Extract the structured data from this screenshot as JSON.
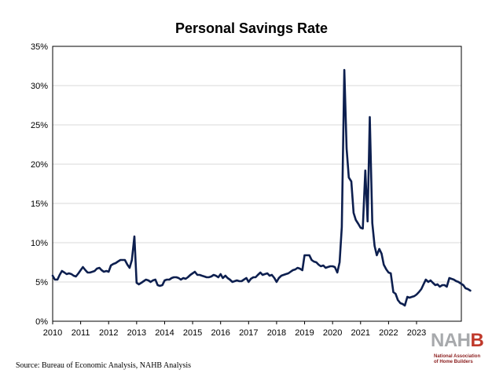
{
  "chart_data": {
    "type": "line",
    "title": "Personal Savings Rate",
    "xlabel": "",
    "ylabel": "",
    "xlim": [
      2010,
      2024.6
    ],
    "ylim": [
      0,
      35
    ],
    "y_ticks": [
      0,
      5,
      10,
      15,
      20,
      25,
      30,
      35
    ],
    "y_tick_labels": [
      "0%",
      "5%",
      "10%",
      "15%",
      "20%",
      "25%",
      "30%",
      "35%"
    ],
    "x_ticks": [
      2010,
      2011,
      2012,
      2013,
      2014,
      2015,
      2016,
      2017,
      2018,
      2019,
      2020,
      2021,
      2022,
      2023
    ],
    "x_tick_labels": [
      "2010",
      "2011",
      "2012",
      "2013",
      "2014",
      "2015",
      "2016",
      "2017",
      "2018",
      "2019",
      "2020",
      "2021",
      "2022",
      "2023"
    ],
    "grid": true,
    "line_color": "#0d1f4f",
    "series": [
      {
        "values": [
          [
            2010.0,
            5.8
          ],
          [
            2010.08,
            5.3
          ],
          [
            2010.17,
            5.3
          ],
          [
            2010.25,
            5.9
          ],
          [
            2010.33,
            6.4
          ],
          [
            2010.42,
            6.2
          ],
          [
            2010.5,
            6.0
          ],
          [
            2010.58,
            6.1
          ],
          [
            2010.67,
            6.0
          ],
          [
            2010.75,
            5.8
          ],
          [
            2010.83,
            5.7
          ],
          [
            2010.92,
            6.1
          ],
          [
            2011.0,
            6.5
          ],
          [
            2011.08,
            6.9
          ],
          [
            2011.17,
            6.5
          ],
          [
            2011.25,
            6.2
          ],
          [
            2011.33,
            6.2
          ],
          [
            2011.42,
            6.3
          ],
          [
            2011.5,
            6.4
          ],
          [
            2011.58,
            6.7
          ],
          [
            2011.67,
            6.8
          ],
          [
            2011.75,
            6.5
          ],
          [
            2011.83,
            6.3
          ],
          [
            2011.92,
            6.4
          ],
          [
            2012.0,
            6.3
          ],
          [
            2012.08,
            7.1
          ],
          [
            2012.17,
            7.3
          ],
          [
            2012.25,
            7.4
          ],
          [
            2012.33,
            7.6
          ],
          [
            2012.42,
            7.8
          ],
          [
            2012.5,
            7.8
          ],
          [
            2012.58,
            7.8
          ],
          [
            2012.67,
            7.2
          ],
          [
            2012.75,
            6.8
          ],
          [
            2012.83,
            7.8
          ],
          [
            2012.92,
            10.8
          ],
          [
            2013.0,
            4.9
          ],
          [
            2013.08,
            4.7
          ],
          [
            2013.17,
            4.9
          ],
          [
            2013.25,
            5.1
          ],
          [
            2013.33,
            5.3
          ],
          [
            2013.42,
            5.2
          ],
          [
            2013.5,
            5.0
          ],
          [
            2013.58,
            5.2
          ],
          [
            2013.67,
            5.3
          ],
          [
            2013.75,
            4.6
          ],
          [
            2013.83,
            4.5
          ],
          [
            2013.92,
            4.6
          ],
          [
            2014.0,
            5.2
          ],
          [
            2014.08,
            5.3
          ],
          [
            2014.17,
            5.3
          ],
          [
            2014.25,
            5.5
          ],
          [
            2014.33,
            5.6
          ],
          [
            2014.42,
            5.6
          ],
          [
            2014.5,
            5.5
          ],
          [
            2014.58,
            5.3
          ],
          [
            2014.67,
            5.5
          ],
          [
            2014.75,
            5.4
          ],
          [
            2014.83,
            5.6
          ],
          [
            2014.92,
            5.9
          ],
          [
            2015.0,
            6.1
          ],
          [
            2015.08,
            6.3
          ],
          [
            2015.17,
            5.9
          ],
          [
            2015.25,
            5.9
          ],
          [
            2015.33,
            5.8
          ],
          [
            2015.42,
            5.7
          ],
          [
            2015.5,
            5.6
          ],
          [
            2015.58,
            5.6
          ],
          [
            2015.67,
            5.7
          ],
          [
            2015.75,
            5.9
          ],
          [
            2015.83,
            5.8
          ],
          [
            2015.92,
            5.6
          ],
          [
            2016.0,
            6.0
          ],
          [
            2016.08,
            5.5
          ],
          [
            2016.17,
            5.8
          ],
          [
            2016.25,
            5.5
          ],
          [
            2016.33,
            5.3
          ],
          [
            2016.42,
            5.0
          ],
          [
            2016.5,
            5.1
          ],
          [
            2016.58,
            5.2
          ],
          [
            2016.67,
            5.1
          ],
          [
            2016.75,
            5.1
          ],
          [
            2016.83,
            5.3
          ],
          [
            2016.92,
            5.5
          ],
          [
            2017.0,
            5.0
          ],
          [
            2017.08,
            5.4
          ],
          [
            2017.17,
            5.6
          ],
          [
            2017.25,
            5.6
          ],
          [
            2017.33,
            5.9
          ],
          [
            2017.42,
            6.2
          ],
          [
            2017.5,
            5.9
          ],
          [
            2017.58,
            6.0
          ],
          [
            2017.67,
            6.1
          ],
          [
            2017.75,
            5.8
          ],
          [
            2017.83,
            5.9
          ],
          [
            2017.92,
            5.5
          ],
          [
            2018.0,
            5.0
          ],
          [
            2018.08,
            5.5
          ],
          [
            2018.17,
            5.8
          ],
          [
            2018.25,
            5.9
          ],
          [
            2018.33,
            6.0
          ],
          [
            2018.42,
            6.1
          ],
          [
            2018.5,
            6.3
          ],
          [
            2018.58,
            6.5
          ],
          [
            2018.67,
            6.6
          ],
          [
            2018.75,
            6.8
          ],
          [
            2018.83,
            6.7
          ],
          [
            2018.92,
            6.5
          ],
          [
            2019.0,
            8.4
          ],
          [
            2019.08,
            8.4
          ],
          [
            2019.17,
            8.4
          ],
          [
            2019.25,
            7.8
          ],
          [
            2019.33,
            7.6
          ],
          [
            2019.42,
            7.5
          ],
          [
            2019.5,
            7.2
          ],
          [
            2019.58,
            7.0
          ],
          [
            2019.67,
            7.1
          ],
          [
            2019.75,
            6.8
          ],
          [
            2019.83,
            6.9
          ],
          [
            2019.92,
            7.0
          ],
          [
            2020.0,
            7.0
          ],
          [
            2020.08,
            6.9
          ],
          [
            2020.17,
            6.2
          ],
          [
            2020.25,
            7.5
          ],
          [
            2020.33,
            12.0
          ],
          [
            2020.42,
            32.0
          ],
          [
            2020.5,
            22.0
          ],
          [
            2020.58,
            18.3
          ],
          [
            2020.67,
            17.8
          ],
          [
            2020.75,
            13.8
          ],
          [
            2020.83,
            12.9
          ],
          [
            2020.92,
            12.4
          ],
          [
            2021.0,
            11.9
          ],
          [
            2021.08,
            11.8
          ],
          [
            2021.17,
            19.2
          ],
          [
            2021.25,
            12.7
          ],
          [
            2021.33,
            26.0
          ],
          [
            2021.42,
            12.5
          ],
          [
            2021.5,
            9.6
          ],
          [
            2021.58,
            8.4
          ],
          [
            2021.67,
            9.2
          ],
          [
            2021.75,
            8.6
          ],
          [
            2021.83,
            7.2
          ],
          [
            2021.92,
            6.6
          ],
          [
            2022.0,
            6.2
          ],
          [
            2022.08,
            6.1
          ],
          [
            2022.17,
            3.7
          ],
          [
            2022.25,
            3.5
          ],
          [
            2022.33,
            2.7
          ],
          [
            2022.42,
            2.3
          ],
          [
            2022.5,
            2.2
          ],
          [
            2022.58,
            2.0
          ],
          [
            2022.67,
            3.1
          ],
          [
            2022.75,
            3.0
          ],
          [
            2022.83,
            3.1
          ],
          [
            2022.92,
            3.2
          ],
          [
            2023.0,
            3.4
          ],
          [
            2023.08,
            3.7
          ],
          [
            2023.17,
            4.1
          ],
          [
            2023.25,
            4.7
          ],
          [
            2023.33,
            5.3
          ],
          [
            2023.42,
            5.0
          ],
          [
            2023.5,
            5.2
          ],
          [
            2023.58,
            4.9
          ],
          [
            2023.67,
            4.6
          ],
          [
            2023.75,
            4.7
          ],
          [
            2023.83,
            4.4
          ],
          [
            2023.92,
            4.6
          ],
          [
            2024.0,
            4.6
          ],
          [
            2024.08,
            4.4
          ],
          [
            2024.17,
            5.5
          ],
          [
            2024.25,
            5.4
          ],
          [
            2024.33,
            5.3
          ],
          [
            2024.42,
            5.1
          ],
          [
            2024.5,
            5.0
          ],
          [
            2024.58,
            4.8
          ],
          [
            2024.67,
            4.6
          ],
          [
            2024.75,
            4.2
          ],
          [
            2024.83,
            4.1
          ],
          [
            2024.92,
            3.9
          ]
        ]
      }
    ]
  },
  "footer": {
    "source": "Source: Bureau of Economic Analysis, NAHB Analysis"
  },
  "logo": {
    "word_main": "NAH",
    "word_accent": "B",
    "line1": "National Association",
    "line2": "of Home Builders"
  }
}
